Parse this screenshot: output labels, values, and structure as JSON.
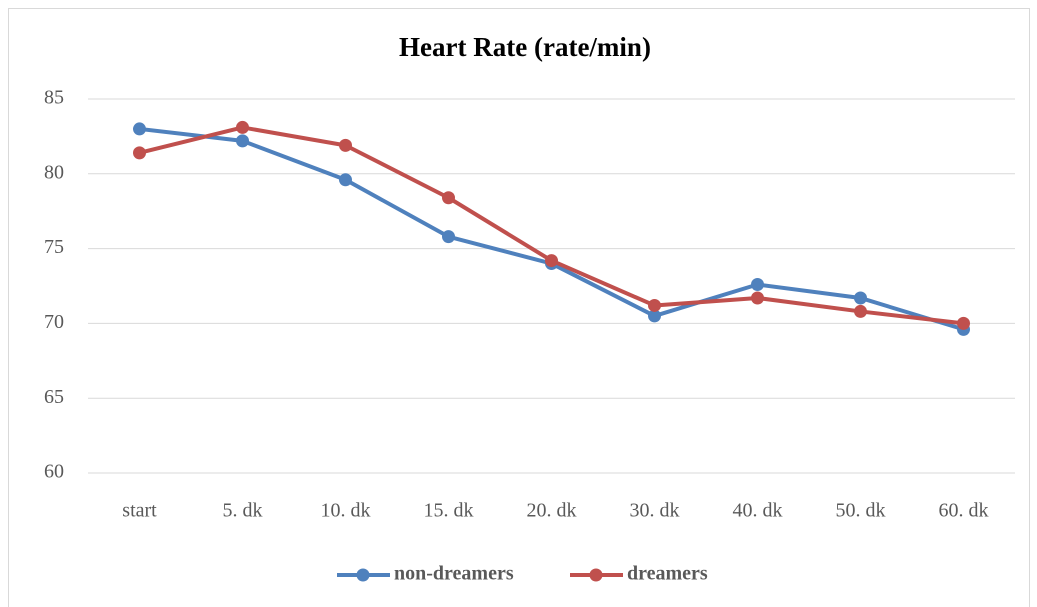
{
  "chart_data": {
    "type": "line",
    "title": "Heart Rate (rate/min)",
    "categories": [
      "start",
      "5. dk",
      "10. dk",
      "15. dk",
      "20. dk",
      "30. dk",
      "40. dk",
      "50. dk",
      "60. dk"
    ],
    "series": [
      {
        "name": "non-dreamers",
        "color": "#4f81bd",
        "values": [
          83.0,
          82.2,
          79.6,
          75.8,
          74.0,
          70.5,
          72.6,
          71.7,
          69.6
        ]
      },
      {
        "name": "dreamers",
        "color": "#c0504d",
        "values": [
          81.4,
          83.1,
          81.9,
          78.4,
          74.2,
          71.2,
          71.7,
          70.8,
          70.0
        ]
      }
    ],
    "ylim": [
      60,
      85
    ],
    "yticks": [
      60,
      65,
      70,
      75,
      80,
      85
    ],
    "grid": true,
    "legend": "bottom"
  }
}
